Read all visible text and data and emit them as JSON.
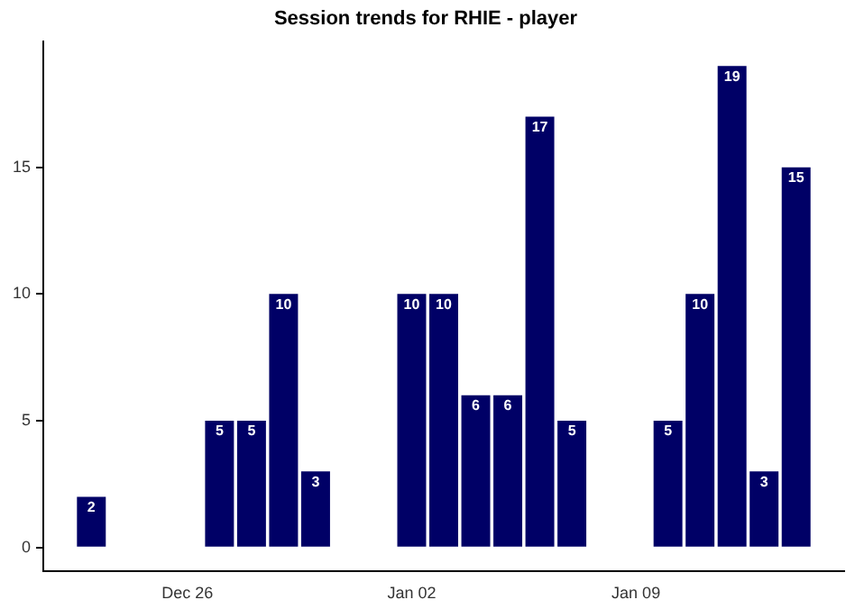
{
  "chart_data": {
    "type": "bar",
    "title": "Session trends for RHIE - player",
    "categories": [
      null,
      null,
      null,
      null,
      "Dec 26",
      null,
      null,
      null,
      null,
      null,
      null,
      "Jan 02",
      null,
      null,
      null,
      null,
      null,
      null,
      "Jan 09",
      null,
      null,
      null,
      null,
      null,
      null
    ],
    "values": [
      null,
      2,
      null,
      null,
      null,
      5,
      5,
      10,
      3,
      null,
      null,
      10,
      10,
      6,
      6,
      17,
      5,
      null,
      null,
      5,
      10,
      19,
      3,
      15,
      null
    ],
    "color": "#000066",
    "ylim": [
      -0.95,
      19.95
    ],
    "yticks": [
      0,
      5,
      10,
      15
    ],
    "grid": false,
    "data_labels": true
  }
}
